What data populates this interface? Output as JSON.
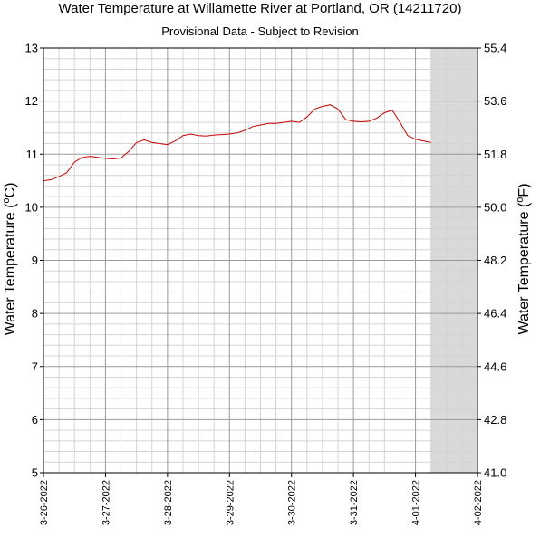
{
  "chart_data": {
    "type": "line",
    "title": "Water Temperature at Willamette River at Portland, OR (14211720)",
    "subtitle": "Provisional Data - Subject to Revision",
    "ylabel_left": "Water Temperature (°C)",
    "ylabel_right": "Water Temperature (°F)",
    "ylim": [
      5,
      13
    ],
    "yticks": [
      "5",
      "6",
      "7",
      "8",
      "9",
      "10",
      "11",
      "12",
      "13"
    ],
    "yticks_right": [
      "41.0",
      "42.8",
      "44.6",
      "46.4",
      "48.2",
      "50.0",
      "51.8",
      "53.6",
      "55.4"
    ],
    "xlim": [
      "3-26-2022",
      "4-02-2022"
    ],
    "xticks": [
      "3-26-2022",
      "3-27-2022",
      "3-28-2022",
      "3-29-2022",
      "3-30-2022",
      "3-31-2022",
      "4-01-2022",
      "4-02-2022"
    ],
    "grid": true,
    "shaded_region": {
      "start": "2022-04-01T06:00",
      "end": "2022-04-02T00:00",
      "color": "#d9d9d9"
    },
    "series": [
      {
        "color": "#cc0000",
        "x": [
          "2022-03-26T00:00",
          "2022-03-26T03:00",
          "2022-03-26T06:00",
          "2022-03-26T09:00",
          "2022-03-26T12:00",
          "2022-03-26T15:00",
          "2022-03-26T18:00",
          "2022-03-26T21:00",
          "2022-03-27T00:00",
          "2022-03-27T03:00",
          "2022-03-27T06:00",
          "2022-03-27T09:00",
          "2022-03-27T12:00",
          "2022-03-27T15:00",
          "2022-03-27T18:00",
          "2022-03-27T21:00",
          "2022-03-28T00:00",
          "2022-03-28T03:00",
          "2022-03-28T06:00",
          "2022-03-28T09:00",
          "2022-03-28T12:00",
          "2022-03-28T15:00",
          "2022-03-28T18:00",
          "2022-03-28T21:00",
          "2022-03-29T00:00",
          "2022-03-29T03:00",
          "2022-03-29T06:00",
          "2022-03-29T09:00",
          "2022-03-29T12:00",
          "2022-03-29T15:00",
          "2022-03-29T18:00",
          "2022-03-29T21:00",
          "2022-03-30T00:00",
          "2022-03-30T03:00",
          "2022-03-30T06:00",
          "2022-03-30T09:00",
          "2022-03-30T12:00",
          "2022-03-30T15:00",
          "2022-03-30T18:00",
          "2022-03-30T21:00",
          "2022-03-31T00:00",
          "2022-03-31T03:00",
          "2022-03-31T06:00",
          "2022-03-31T09:00",
          "2022-03-31T12:00",
          "2022-03-31T15:00",
          "2022-03-31T18:00",
          "2022-03-31T21:00",
          "2022-04-01T00:00",
          "2022-04-01T03:00",
          "2022-04-01T06:00"
        ],
        "y": [
          10.5,
          10.52,
          10.58,
          10.65,
          10.85,
          10.94,
          10.96,
          10.94,
          10.92,
          10.91,
          10.93,
          11.05,
          11.22,
          11.27,
          11.22,
          11.2,
          11.18,
          11.25,
          11.35,
          11.38,
          11.35,
          11.34,
          11.36,
          11.37,
          11.38,
          11.4,
          11.45,
          11.52,
          11.55,
          11.58,
          11.58,
          11.6,
          11.62,
          11.6,
          11.7,
          11.85,
          11.9,
          11.93,
          11.85,
          11.65,
          11.62,
          11.61,
          11.62,
          11.68,
          11.78,
          11.83,
          11.6,
          11.35,
          11.28,
          11.25,
          11.22
        ]
      }
    ]
  }
}
